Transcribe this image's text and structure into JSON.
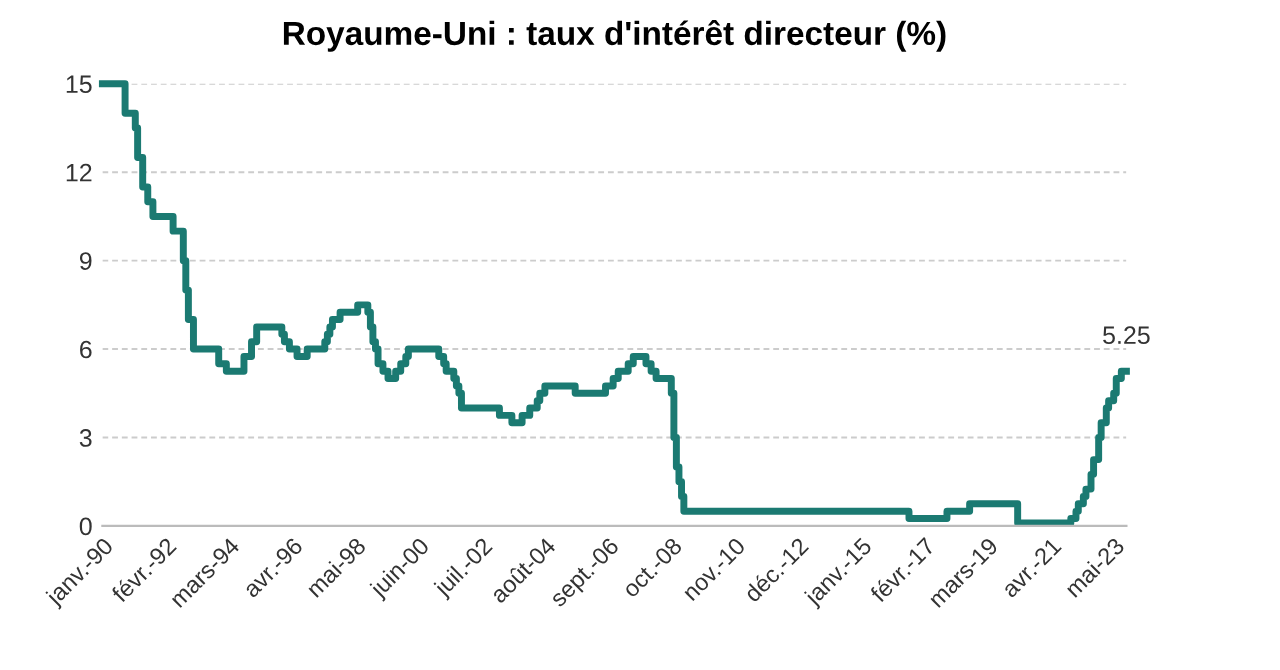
{
  "chart_data": {
    "type": "step",
    "title": "Royaume-Uni : taux d'intérêt directeur (%)",
    "x": [
      "1990-01",
      "1990-10",
      "1991-02",
      "1991-03",
      "1991-05",
      "1991-07",
      "1991-09",
      "1992-05",
      "1992-09",
      "1992-10",
      "1992-11",
      "1993-01",
      "1993-11",
      "1994-02",
      "1994-09",
      "1994-12",
      "1995-02",
      "1995-12",
      "1996-01",
      "1996-03",
      "1996-06",
      "1996-10",
      "1997-05",
      "1997-06",
      "1997-07",
      "1997-08",
      "1997-11",
      "1998-06",
      "1998-10",
      "1998-11",
      "1998-12",
      "1999-01",
      "1999-02",
      "1999-04",
      "1999-06",
      "1999-09",
      "1999-11",
      "2000-01",
      "2000-02",
      "2001-02",
      "2001-04",
      "2001-05",
      "2001-08",
      "2001-09",
      "2001-10",
      "2001-11",
      "2003-02",
      "2003-07",
      "2003-11",
      "2004-02",
      "2004-05",
      "2004-06",
      "2004-08",
      "2005-08",
      "2006-08",
      "2006-11",
      "2007-01",
      "2007-05",
      "2007-07",
      "2007-12",
      "2008-02",
      "2008-04",
      "2008-10",
      "2008-11",
      "2008-12",
      "2009-01",
      "2009-02",
      "2009-03",
      "2016-08",
      "2017-11",
      "2018-08",
      "2020-03",
      "2021-12",
      "2022-02",
      "2022-03",
      "2022-05",
      "2022-06",
      "2022-08",
      "2022-09",
      "2022-11",
      "2022-12",
      "2023-02",
      "2023-03",
      "2023-05",
      "2023-06",
      "2023-08",
      "2023-10"
    ],
    "series": [
      {
        "color": "#1b7a72",
        "values": [
          15,
          14,
          13.5,
          12.5,
          11.5,
          11,
          10.5,
          10,
          9,
          8,
          7,
          6,
          5.5,
          5.25,
          5.75,
          6.25,
          6.75,
          6.5,
          6.25,
          6,
          5.75,
          6,
          6.25,
          6.5,
          6.75,
          7,
          7.25,
          7.5,
          7.25,
          6.75,
          6.25,
          6,
          5.5,
          5.25,
          5,
          5.25,
          5.5,
          5.75,
          6,
          5.75,
          5.5,
          5.25,
          5,
          4.75,
          4.5,
          4,
          3.75,
          3.5,
          3.75,
          4,
          4.25,
          4.5,
          4.75,
          4.5,
          4.75,
          5,
          5.25,
          5.5,
          5.75,
          5.5,
          5.25,
          5,
          4.5,
          3,
          2,
          1.5,
          1,
          0.5,
          0.25,
          0.5,
          0.75,
          0.1,
          0.25,
          0.5,
          0.75,
          1,
          1.25,
          1.75,
          2.25,
          3,
          3.5,
          4,
          4.25,
          4.5,
          5,
          5.25,
          5.25
        ]
      }
    ],
    "xlim": [
      "1990-01",
      "2023-10"
    ],
    "xticks": [
      {
        "value": "1990-01",
        "label": "janv.-90"
      },
      {
        "value": "1992-02",
        "label": "févr.-92"
      },
      {
        "value": "1994-03",
        "label": "mars-94"
      },
      {
        "value": "1996-04",
        "label": "avr.-96"
      },
      {
        "value": "1998-05",
        "label": "mai-98"
      },
      {
        "value": "2000-06",
        "label": "juin-00"
      },
      {
        "value": "2002-07",
        "label": "juil.-02"
      },
      {
        "value": "2004-08",
        "label": "août-04"
      },
      {
        "value": "2006-09",
        "label": "sept.-06"
      },
      {
        "value": "2008-10",
        "label": "oct.-08"
      },
      {
        "value": "2010-11",
        "label": "nov.-10"
      },
      {
        "value": "2012-12",
        "label": "déc.-12"
      },
      {
        "value": "2015-01",
        "label": "janv.-15"
      },
      {
        "value": "2017-02",
        "label": "févr.-17"
      },
      {
        "value": "2019-03",
        "label": "mars-19"
      },
      {
        "value": "2021-04",
        "label": "avr.-21"
      },
      {
        "value": "2023-05",
        "label": "mai-23"
      }
    ],
    "ylim": [
      0,
      15
    ],
    "yticks": [
      0,
      3,
      6,
      9,
      12,
      15
    ],
    "grid": "y",
    "legend": false,
    "annotations": [
      {
        "text": "5.25",
        "x": "2023-10",
        "y": 5.25
      }
    ]
  }
}
